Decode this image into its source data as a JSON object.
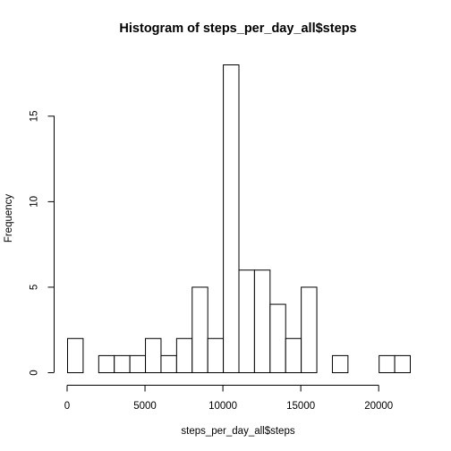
{
  "chart_data": {
    "type": "bar",
    "title": "Histogram of steps_per_day_all$steps",
    "xlabel": "steps_per_day_all$steps",
    "ylabel": "Frequency",
    "bin_edges": [
      0,
      1000,
      2000,
      3000,
      4000,
      5000,
      6000,
      7000,
      8000,
      9000,
      10000,
      11000,
      12000,
      13000,
      14000,
      15000,
      16000,
      17000,
      18000,
      19000,
      20000,
      21000,
      22000
    ],
    "values": [
      2,
      0,
      1,
      1,
      1,
      2,
      1,
      2,
      5,
      2,
      18,
      6,
      6,
      4,
      2,
      5,
      0,
      1,
      0,
      0,
      1,
      1
    ],
    "xlim": [
      0,
      22000
    ],
    "ylim": [
      0,
      18
    ],
    "x_ticks": [
      0,
      5000,
      10000,
      15000,
      20000
    ],
    "x_tick_labels": [
      "0",
      "5000",
      "10000",
      "15000",
      "20000"
    ],
    "y_ticks": [
      0,
      5,
      10,
      15
    ],
    "y_tick_labels": [
      "0",
      "5",
      "10",
      "15"
    ],
    "grid": false,
    "legend": "none",
    "bar_fill": "#ffffff",
    "bar_stroke": "#000000"
  }
}
